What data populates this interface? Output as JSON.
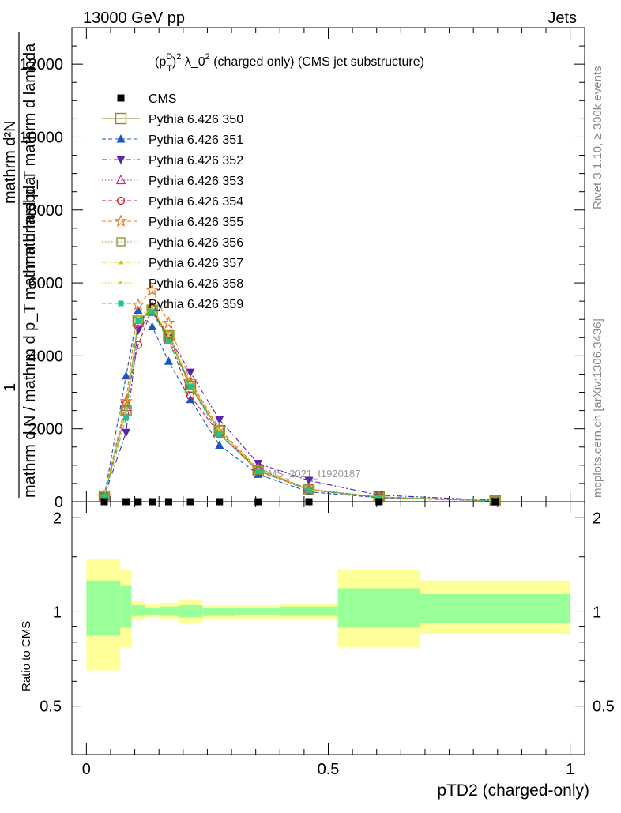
{
  "header": {
    "left": "13000 GeV pp",
    "right": "Jets"
  },
  "side_labels": {
    "rivet": "Rivet 3.1.10, ≥ 300k events",
    "mcplots": "mcplots.cern.ch [arXiv:1306.3436]"
  },
  "watermark": "CMS_2021_I1920187",
  "chart_data": [
    {
      "type": "line",
      "title": "(p_T^D)^2 λ_0^2 (charged only) (CMS jet substructure)",
      "title_parts": {
        "p": "(p",
        "sup_d": "D",
        "sub_t": "T",
        "close": ")",
        "sup_2a": "2",
        "mid": " λ_0",
        "sup_2b": "2",
        "rest": " (charged only) (CMS jet substructure)"
      },
      "ylabel_parts": {
        "one": "1",
        "numerator": "mathrm d²N",
        "numerator_raw": "mathrm d",
        "n2": "2",
        "n3": "N",
        "den_top": "mathrm d p_T mathrm d lambda",
        "den_bottom": "mathrm d N / mathrm d p_T mathrm d lambda"
      },
      "xlim": [
        -0.03,
        1.03
      ],
      "ylim": [
        0,
        13000
      ],
      "yticks": [
        0,
        2000,
        4000,
        6000,
        8000,
        10000,
        12000
      ],
      "ytick_labels": [
        "0",
        "2000",
        "4000",
        "6000",
        "8000",
        "10000",
        "12000"
      ],
      "x": [
        0.037,
        0.082,
        0.107,
        0.136,
        0.17,
        0.215,
        0.275,
        0.355,
        0.46,
        0.605,
        0.845
      ],
      "series": [
        {
          "name": "CMS",
          "color": "#000000",
          "marker": "square-filled",
          "dash": "none",
          "values": [
            0,
            0,
            0,
            0,
            0,
            0,
            0,
            0,
            0,
            0,
            0
          ]
        },
        {
          "name": "Pythia 6.426 350",
          "color": "#8a8f1f",
          "marker": "square-open-big",
          "dash": "solid",
          "values": [
            150,
            2500,
            4950,
            5250,
            4550,
            3150,
            1950,
            850,
            330,
            130,
            25
          ]
        },
        {
          "name": "Pythia 6.426 351",
          "color": "#1a56c4",
          "marker": "triangle-up-filled",
          "dash": "dashed",
          "values": [
            150,
            3450,
            5250,
            4800,
            3850,
            2800,
            1550,
            750,
            270,
            110,
            20
          ]
        },
        {
          "name": "Pythia 6.426 352",
          "color": "#5a23b0",
          "marker": "triangle-down-filled",
          "dash": "dashdot",
          "values": [
            150,
            1900,
            4700,
            5200,
            4500,
            3550,
            2250,
            1050,
            580,
            180,
            40
          ]
        },
        {
          "name": "Pythia 6.426 353",
          "color": "#c0308f",
          "marker": "triangle-up-open",
          "dash": "dotted",
          "values": [
            150,
            2600,
            4900,
            5350,
            4450,
            3250,
            1900,
            880,
            350,
            130,
            25
          ]
        },
        {
          "name": "Pythia 6.426 354",
          "color": "#d11a2a",
          "marker": "circle-open",
          "dash": "dashed",
          "values": [
            150,
            2700,
            4300,
            5300,
            4450,
            2900,
            1850,
            860,
            320,
            120,
            25
          ]
        },
        {
          "name": "Pythia 6.426 355",
          "color": "#f07a22",
          "marker": "star-open",
          "dash": "dashed",
          "values": [
            150,
            2750,
            5400,
            5800,
            4900,
            3300,
            2000,
            900,
            340,
            130,
            25
          ]
        },
        {
          "name": "Pythia 6.426 356",
          "color": "#8a8f1f",
          "marker": "square-open",
          "dash": "dotted",
          "values": [
            150,
            2500,
            4950,
            5250,
            4550,
            3200,
            1950,
            860,
            330,
            130,
            25
          ]
        },
        {
          "name": "Pythia 6.426 357",
          "color": "#d6c11a",
          "marker": "tri-small",
          "dash": "dashdot",
          "values": [
            150,
            2500,
            5000,
            5300,
            4550,
            3250,
            1950,
            860,
            330,
            130,
            25
          ]
        },
        {
          "name": "Pythia 6.426 358",
          "color": "#c8d61a",
          "marker": "dot-small",
          "dash": "dotted",
          "values": [
            150,
            2550,
            5050,
            5350,
            4600,
            3250,
            1950,
            870,
            330,
            130,
            25
          ]
        },
        {
          "name": "Pythia 6.426 359",
          "color": "#22c28a",
          "marker": "square-filled-small",
          "dash": "dashed",
          "values": [
            150,
            2300,
            4950,
            5200,
            4400,
            3150,
            1850,
            840,
            320,
            125,
            25
          ]
        }
      ]
    },
    {
      "type": "area",
      "ylabel": "Ratio to CMS",
      "xlabel": "pTD2 (charged-only)",
      "xlim": [
        -0.03,
        1.03
      ],
      "ylim": [
        0.35,
        2.25
      ],
      "yticks": [
        0.5,
        1,
        2
      ],
      "ytick_labels": [
        "0.5",
        "1",
        "2"
      ],
      "xticks": [
        0,
        0.5,
        1
      ],
      "xtick_labels": [
        "0",
        "0.5",
        "1"
      ],
      "bins": [
        {
          "lo": 0.0,
          "hi": 0.07,
          "yellow": [
            0.65,
            1.47
          ],
          "green": [
            0.84,
            1.26
          ]
        },
        {
          "lo": 0.07,
          "hi": 0.093,
          "yellow": [
            0.77,
            1.36
          ],
          "green": [
            0.89,
            1.21
          ]
        },
        {
          "lo": 0.093,
          "hi": 0.121,
          "yellow": [
            0.94,
            1.08
          ],
          "green": [
            0.97,
            1.05
          ]
        },
        {
          "lo": 0.121,
          "hi": 0.152,
          "yellow": [
            0.96,
            1.06
          ],
          "green": [
            0.98,
            1.03
          ]
        },
        {
          "lo": 0.152,
          "hi": 0.19,
          "yellow": [
            0.95,
            1.07
          ],
          "green": [
            0.97,
            1.04
          ]
        },
        {
          "lo": 0.19,
          "hi": 0.24,
          "yellow": [
            0.92,
            1.09
          ],
          "green": [
            0.96,
            1.05
          ]
        },
        {
          "lo": 0.24,
          "hi": 0.31,
          "yellow": [
            0.95,
            1.05
          ],
          "green": [
            0.97,
            1.03
          ]
        },
        {
          "lo": 0.31,
          "hi": 0.4,
          "yellow": [
            0.95,
            1.05
          ],
          "green": [
            0.98,
            1.03
          ]
        },
        {
          "lo": 0.4,
          "hi": 0.52,
          "yellow": [
            0.95,
            1.06
          ],
          "green": [
            0.97,
            1.04
          ]
        },
        {
          "lo": 0.52,
          "hi": 0.69,
          "yellow": [
            0.77,
            1.37
          ],
          "green": [
            0.89,
            1.19
          ]
        },
        {
          "lo": 0.69,
          "hi": 1.0,
          "yellow": [
            0.85,
            1.26
          ],
          "green": [
            0.92,
            1.14
          ]
        }
      ],
      "band_colors": {
        "yellow": "#ffff99",
        "green": "#99ff99"
      }
    }
  ]
}
